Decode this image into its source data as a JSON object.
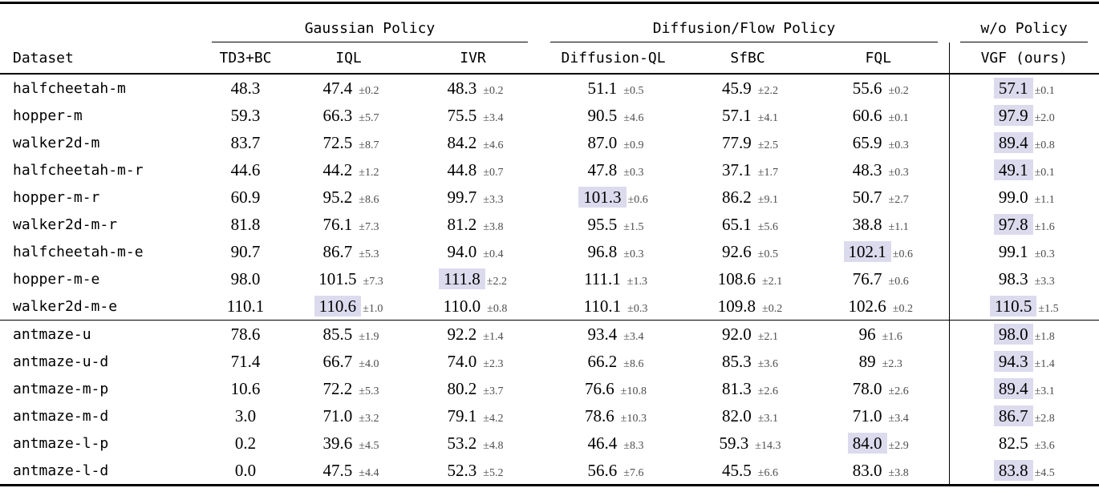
{
  "table": {
    "highlight_color": "#dcdaed",
    "rule_color": "#000000",
    "stderr_color": "#4d4d4d",
    "groups": [
      {
        "label": "Gaussian Policy"
      },
      {
        "label": "Diffusion/Flow Policy"
      },
      {
        "label": "w/o Policy"
      }
    ],
    "columns": [
      "Dataset",
      "TD3+BC",
      "IQL",
      "IVR",
      "Diffusion-QL",
      "SfBC",
      "FQL",
      "VGF (ours)"
    ],
    "section_break_index": 9,
    "rows": [
      {
        "dataset": "halfcheetah-m",
        "cells": [
          {
            "value": "48.3"
          },
          {
            "value": "47.4",
            "err": "±0.2"
          },
          {
            "value": "48.3",
            "err": "±0.2"
          },
          {
            "value": "51.1",
            "err": "±0.5"
          },
          {
            "value": "45.9",
            "err": "±2.2"
          },
          {
            "value": "55.6",
            "err": "±0.2"
          },
          {
            "value": "57.1",
            "err": "±0.1",
            "highlight": true
          }
        ]
      },
      {
        "dataset": "hopper-m",
        "cells": [
          {
            "value": "59.3"
          },
          {
            "value": "66.3",
            "err": "±5.7"
          },
          {
            "value": "75.5",
            "err": "±3.4"
          },
          {
            "value": "90.5",
            "err": "±4.6"
          },
          {
            "value": "57.1",
            "err": "±4.1"
          },
          {
            "value": "60.6",
            "err": "±0.1"
          },
          {
            "value": "97.9",
            "err": "±2.0",
            "highlight": true
          }
        ]
      },
      {
        "dataset": "walker2d-m",
        "cells": [
          {
            "value": "83.7"
          },
          {
            "value": "72.5",
            "err": "±8.7"
          },
          {
            "value": "84.2",
            "err": "±4.6"
          },
          {
            "value": "87.0",
            "err": "±0.9"
          },
          {
            "value": "77.9",
            "err": "±2.5"
          },
          {
            "value": "65.9",
            "err": "±0.3"
          },
          {
            "value": "89.4",
            "err": "±0.8",
            "highlight": true
          }
        ]
      },
      {
        "dataset": "halfcheetah-m-r",
        "cells": [
          {
            "value": "44.6"
          },
          {
            "value": "44.2",
            "err": "±1.2"
          },
          {
            "value": "44.8",
            "err": "±0.7"
          },
          {
            "value": "47.8",
            "err": "±0.3"
          },
          {
            "value": "37.1",
            "err": "±1.7"
          },
          {
            "value": "48.3",
            "err": "±0.3"
          },
          {
            "value": "49.1",
            "err": "±0.1",
            "highlight": true
          }
        ]
      },
      {
        "dataset": "hopper-m-r",
        "cells": [
          {
            "value": "60.9"
          },
          {
            "value": "95.2",
            "err": "±8.6"
          },
          {
            "value": "99.7",
            "err": "±3.3"
          },
          {
            "value": "101.3",
            "err": "±0.6",
            "highlight": true
          },
          {
            "value": "86.2",
            "err": "±9.1"
          },
          {
            "value": "50.7",
            "err": "±2.7"
          },
          {
            "value": "99.0",
            "err": "±1.1"
          }
        ]
      },
      {
        "dataset": "walker2d-m-r",
        "cells": [
          {
            "value": "81.8"
          },
          {
            "value": "76.1",
            "err": "±7.3"
          },
          {
            "value": "81.2",
            "err": "±3.8"
          },
          {
            "value": "95.5",
            "err": "±1.5"
          },
          {
            "value": "65.1",
            "err": "±5.6"
          },
          {
            "value": "38.8",
            "err": "±1.1"
          },
          {
            "value": "97.8",
            "err": "±1.6",
            "highlight": true
          }
        ]
      },
      {
        "dataset": "halfcheetah-m-e",
        "cells": [
          {
            "value": "90.7"
          },
          {
            "value": "86.7",
            "err": "±5.3"
          },
          {
            "value": "94.0",
            "err": "±0.4"
          },
          {
            "value": "96.8",
            "err": "±0.3"
          },
          {
            "value": "92.6",
            "err": "±0.5"
          },
          {
            "value": "102.1",
            "err": "±0.6",
            "highlight": true
          },
          {
            "value": "99.1",
            "err": "±0.3"
          }
        ]
      },
      {
        "dataset": "hopper-m-e",
        "cells": [
          {
            "value": "98.0"
          },
          {
            "value": "101.5",
            "err": "±7.3"
          },
          {
            "value": "111.8",
            "err": "±2.2",
            "highlight": true
          },
          {
            "value": "111.1",
            "err": "±1.3"
          },
          {
            "value": "108.6",
            "err": "±2.1"
          },
          {
            "value": "76.7",
            "err": "±0.6"
          },
          {
            "value": "98.3",
            "err": "±3.3"
          }
        ]
      },
      {
        "dataset": "walker2d-m-e",
        "cells": [
          {
            "value": "110.1"
          },
          {
            "value": "110.6",
            "err": "±1.0",
            "highlight": true
          },
          {
            "value": "110.0",
            "err": "±0.8"
          },
          {
            "value": "110.1",
            "err": "±0.3"
          },
          {
            "value": "109.8",
            "err": "±0.2"
          },
          {
            "value": "102.6",
            "err": "±0.2"
          },
          {
            "value": "110.5",
            "err": "±1.5",
            "highlight": true
          }
        ]
      },
      {
        "dataset": "antmaze-u",
        "cells": [
          {
            "value": "78.6"
          },
          {
            "value": "85.5",
            "err": "±1.9"
          },
          {
            "value": "92.2",
            "err": "±1.4"
          },
          {
            "value": "93.4",
            "err": "±3.4"
          },
          {
            "value": "92.0",
            "err": "±2.1"
          },
          {
            "value": "96",
            "err": "±1.6"
          },
          {
            "value": "98.0",
            "err": "±1.8",
            "highlight": true
          }
        ]
      },
      {
        "dataset": "antmaze-u-d",
        "cells": [
          {
            "value": "71.4"
          },
          {
            "value": "66.7",
            "err": "±4.0"
          },
          {
            "value": "74.0",
            "err": "±2.3"
          },
          {
            "value": "66.2",
            "err": "±8.6"
          },
          {
            "value": "85.3",
            "err": "±3.6"
          },
          {
            "value": "89",
            "err": "±2.3"
          },
          {
            "value": "94.3",
            "err": "±1.4",
            "highlight": true
          }
        ]
      },
      {
        "dataset": "antmaze-m-p",
        "cells": [
          {
            "value": "10.6"
          },
          {
            "value": "72.2",
            "err": "±5.3"
          },
          {
            "value": "80.2",
            "err": "±3.7"
          },
          {
            "value": "76.6",
            "err": "±10.8"
          },
          {
            "value": "81.3",
            "err": "±2.6"
          },
          {
            "value": "78.0",
            "err": "±2.6"
          },
          {
            "value": "89.4",
            "err": "±3.1",
            "highlight": true
          }
        ]
      },
      {
        "dataset": "antmaze-m-d",
        "cells": [
          {
            "value": "3.0"
          },
          {
            "value": "71.0",
            "err": "±3.2"
          },
          {
            "value": "79.1",
            "err": "±4.2"
          },
          {
            "value": "78.6",
            "err": "±10.3"
          },
          {
            "value": "82.0",
            "err": "±3.1"
          },
          {
            "value": "71.0",
            "err": "±3.4"
          },
          {
            "value": "86.7",
            "err": "±2.8",
            "highlight": true
          }
        ]
      },
      {
        "dataset": "antmaze-l-p",
        "cells": [
          {
            "value": "0.2"
          },
          {
            "value": "39.6",
            "err": "±4.5"
          },
          {
            "value": "53.2",
            "err": "±4.8"
          },
          {
            "value": "46.4",
            "err": "±8.3"
          },
          {
            "value": "59.3",
            "err": "±14.3"
          },
          {
            "value": "84.0",
            "err": "±2.9",
            "highlight": true
          },
          {
            "value": "82.5",
            "err": "±3.6"
          }
        ]
      },
      {
        "dataset": "antmaze-l-d",
        "cells": [
          {
            "value": "0.0"
          },
          {
            "value": "47.5",
            "err": "±4.4"
          },
          {
            "value": "52.3",
            "err": "±5.2"
          },
          {
            "value": "56.6",
            "err": "±7.6"
          },
          {
            "value": "45.5",
            "err": "±6.6"
          },
          {
            "value": "83.0",
            "err": "±3.8"
          },
          {
            "value": "83.8",
            "err": "±4.5",
            "highlight": true
          }
        ]
      }
    ]
  }
}
